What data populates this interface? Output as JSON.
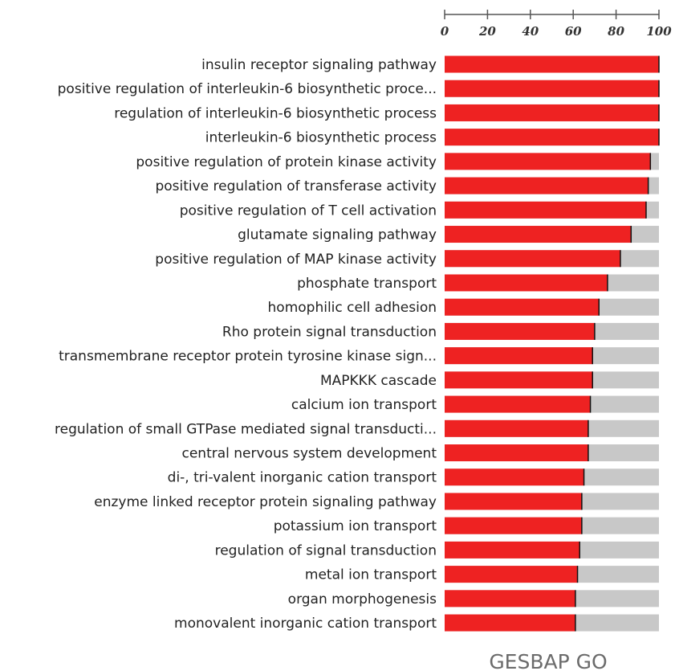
{
  "chart_data": {
    "type": "bar",
    "orientation": "horizontal",
    "stacked_background": true,
    "title": "GESBAP GO",
    "xlim": [
      0,
      100
    ],
    "xticks": [
      "0",
      "20",
      "40",
      "60",
      "80",
      "100"
    ],
    "colors": {
      "bar": "#ee2222",
      "background": "#c8c8c8",
      "end_mark": "#111111"
    },
    "categories": [
      "insulin receptor signaling pathway",
      "positive regulation of interleukin-6 biosynthetic proce...",
      "regulation of interleukin-6 biosynthetic process",
      "interleukin-6 biosynthetic process",
      "positive regulation of protein kinase activity",
      "positive regulation of transferase activity",
      "positive regulation of T cell activation",
      "glutamate signaling pathway",
      "positive regulation of MAP kinase activity",
      "phosphate transport",
      "homophilic cell adhesion",
      "Rho protein signal transduction",
      "transmembrane receptor protein tyrosine kinase sign...",
      "MAPKKK cascade",
      "calcium ion transport",
      "regulation of small GTPase mediated signal transducti...",
      "central nervous system development",
      "di-, tri-valent inorganic cation transport",
      "enzyme linked receptor protein signaling pathway",
      "potassium ion transport",
      "regulation of signal transduction",
      "metal ion transport",
      "organ morphogenesis",
      "monovalent inorganic cation transport"
    ],
    "values": [
      100,
      100,
      100,
      100,
      96,
      95,
      94,
      87,
      82,
      76,
      72,
      70,
      69,
      69,
      68,
      67,
      67,
      65,
      64,
      64,
      63,
      62,
      61,
      61
    ]
  }
}
